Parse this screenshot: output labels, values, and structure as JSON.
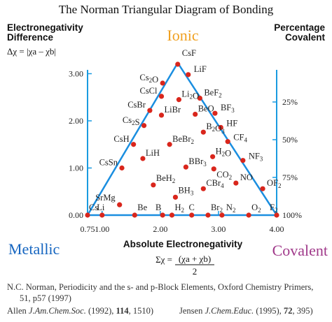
{
  "title": "The Norman Triangular Diagram of Bonding",
  "left_axis": {
    "line1": "Electronegativity",
    "line2": "Difference",
    "formula": "Δχ = |χa – χb|",
    "ticks": [
      "0.00",
      "1.00",
      "2.00",
      "3.00"
    ]
  },
  "right_axis": {
    "line1": "Percentage",
    "line2": "Covalent",
    "ticks": [
      "25%",
      "50%",
      "75%",
      "100%"
    ]
  },
  "bottom_axis": {
    "label": "Absolute Electronegativity",
    "formula_lhs": "Σχ =",
    "formula_num": "(χa + χb)",
    "formula_den": "2",
    "ticks": [
      "0.75",
      "1.00",
      "2.00",
      "3.00",
      "4.00"
    ]
  },
  "corners": {
    "ionic": "Ionic",
    "metallic": "Metallic",
    "covalent": "Covalent"
  },
  "colors": {
    "axis": "#1a9be0",
    "triangle": "#1a8ee0",
    "point": "#d9261c",
    "ionic": "#f0a020",
    "metallic": "#1565c0",
    "covalent": "#a0398a"
  },
  "chart_data": {
    "type": "scatter",
    "xlabel": "Absolute Electronegativity",
    "ylabel": "Electronegativity Difference",
    "xlim": [
      0.75,
      4.0
    ],
    "ylim": [
      0,
      3.2
    ],
    "points": [
      {
        "label": "CsF",
        "x": 2.3,
        "y": 3.2
      },
      {
        "label": "LiF",
        "x": 2.48,
        "y": 2.98
      },
      {
        "label": "Cs2O",
        "x": 2.04,
        "y": 2.8
      },
      {
        "label": "CsCl",
        "x": 2.02,
        "y": 2.52
      },
      {
        "label": "Li2O",
        "x": 2.32,
        "y": 2.45
      },
      {
        "label": "BeF2",
        "x": 2.68,
        "y": 2.48
      },
      {
        "label": "CsBr",
        "x": 1.82,
        "y": 2.22
      },
      {
        "label": "LiBr",
        "x": 2.02,
        "y": 2.12
      },
      {
        "label": "BeO",
        "x": 2.6,
        "y": 2.14
      },
      {
        "label": "BF3",
        "x": 2.94,
        "y": 2.16
      },
      {
        "label": "Cs2S",
        "x": 1.72,
        "y": 1.9
      },
      {
        "label": "HF",
        "x": 3.04,
        "y": 1.86
      },
      {
        "label": "B2O3",
        "x": 2.74,
        "y": 1.76
      },
      {
        "label": "CF4",
        "x": 3.16,
        "y": 1.56
      },
      {
        "label": "CsH",
        "x": 1.54,
        "y": 1.5
      },
      {
        "label": "BeBr2",
        "x": 2.16,
        "y": 1.5
      },
      {
        "label": "LiH",
        "x": 1.7,
        "y": 1.2
      },
      {
        "label": "H2O",
        "x": 2.9,
        "y": 1.24
      },
      {
        "label": "NF3",
        "x": 3.42,
        "y": 1.16
      },
      {
        "label": "CsSn",
        "x": 1.34,
        "y": 1.0
      },
      {
        "label": "BBr3",
        "x": 2.44,
        "y": 1.02
      },
      {
        "label": "CO2",
        "x": 2.92,
        "y": 0.98
      },
      {
        "label": "NO",
        "x": 3.3,
        "y": 0.68
      },
      {
        "label": "BeH2",
        "x": 1.88,
        "y": 0.64
      },
      {
        "label": "CBr4",
        "x": 2.74,
        "y": 0.56
      },
      {
        "label": "OF2",
        "x": 3.76,
        "y": 0.56
      },
      {
        "label": "BH3",
        "x": 2.26,
        "y": 0.38
      },
      {
        "label": "SrMg",
        "x": 1.3,
        "y": 0.22
      },
      {
        "label": "Cs",
        "x": 0.75,
        "y": 0.0
      },
      {
        "label": "Li",
        "x": 1.0,
        "y": 0.0
      },
      {
        "label": "Be",
        "x": 1.56,
        "y": 0.0
      },
      {
        "label": "B",
        "x": 2.04,
        "y": 0.0
      },
      {
        "label": "H2",
        "x": 2.2,
        "y": 0.0
      },
      {
        "label": "C",
        "x": 2.54,
        "y": 0.0
      },
      {
        "label": "Br2",
        "x": 2.82,
        "y": 0.0
      },
      {
        "label": "N2",
        "x": 3.06,
        "y": 0.0
      },
      {
        "label": "O2",
        "x": 3.52,
        "y": 0.0
      },
      {
        "label": "F2",
        "x": 4.0,
        "y": 0.0
      }
    ]
  },
  "references": {
    "line1": "N.C. Norman, Periodicity and the s- and p-Block Elements, Oxford Chemistry Primers,",
    "line2": "51, p57 (1997)",
    "allen_authors": "Allen ",
    "allen_journal": "J.Am.Chem.Soc.",
    "allen_year": " (1992), ",
    "allen_vol": "114",
    "allen_pages": ", 1510)",
    "jensen_authors": "Jensen ",
    "jensen_journal": "J.Chem.Educ.",
    "jensen_year": " (1995), ",
    "jensen_vol": "72",
    "jensen_pages": ", 395)"
  }
}
